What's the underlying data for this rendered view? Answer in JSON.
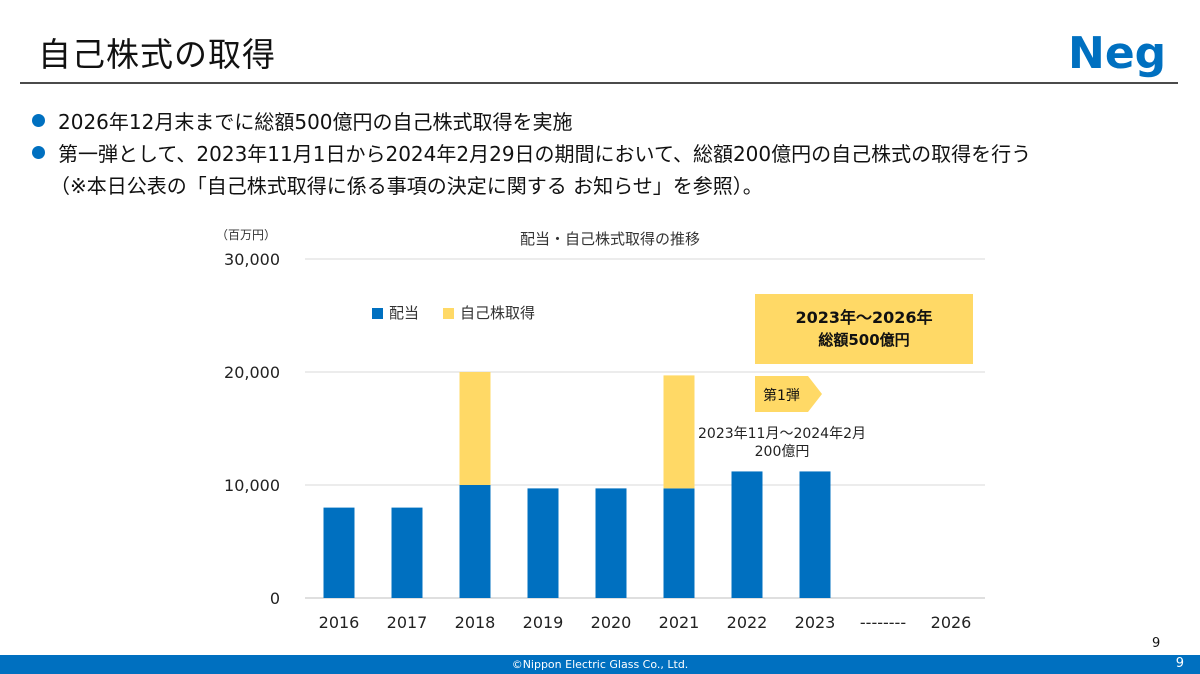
{
  "header": {
    "title": "自己株式の取得",
    "logo_text": "Neg"
  },
  "bullets": [
    "2026年12月末までに総額500億円の自己株式取得を実施",
    "第一弾として、2023年11月1日から2024年2月29日の期間において、総額200億円の自己株式の取得を行う",
    "（※本日公表の「自己株式取得に係る事項の決定に関する お知らせ」を参照）。"
  ],
  "chart_data": {
    "type": "bar",
    "stacked": true,
    "title": "配当・自己株式取得の推移",
    "unit_label": "（百万円）",
    "categories": [
      "2016",
      "2017",
      "2018",
      "2019",
      "2020",
      "2021",
      "2022",
      "2023",
      "--------",
      "2026"
    ],
    "series": [
      {
        "name": "配当",
        "color": "#0070c0",
        "values": [
          8000,
          8000,
          10000,
          9700,
          9700,
          9700,
          11200,
          11200,
          null,
          null
        ]
      },
      {
        "name": "自己株取得",
        "color": "#ffd966",
        "values": [
          0,
          0,
          10000,
          0,
          0,
          10000,
          0,
          0,
          null,
          null
        ]
      }
    ],
    "ylim": [
      0,
      30000
    ],
    "yticks": [
      0,
      10000,
      20000,
      30000
    ],
    "ytick_labels": [
      "0",
      "10,000",
      "20,000",
      "30,000"
    ],
    "grid": true,
    "legend_position": "top-left",
    "annotations": {
      "total_box_line1": "2023年～2026年",
      "total_box_line2": "総額500億円",
      "phase_label": "第1弾",
      "phase_period": "2023年11月～2024年2月",
      "phase_amount": "200億円"
    }
  },
  "footer": {
    "copyright": "©Nippon Electric Glass Co., Ltd.",
    "page": "9"
  },
  "colors": {
    "accent": "#0070c0",
    "buyback": "#ffd966",
    "annotation_box": "#ffd966"
  }
}
